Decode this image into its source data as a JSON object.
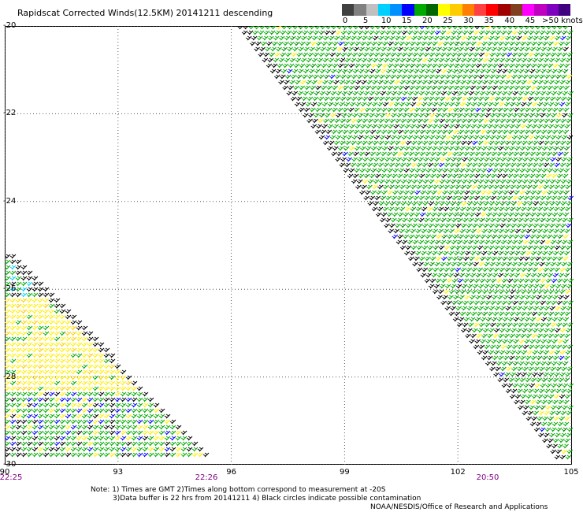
{
  "title": "Rapidscat Corrected Winds(12.5KM) 20141211 descending",
  "legend": {
    "colors": [
      "#404040",
      "#808080",
      "#c0c0c0",
      "#00d0ff",
      "#0090ff",
      "#0000ff",
      "#00aa00",
      "#006600",
      "#ffff00",
      "#ffcc00",
      "#ff8000",
      "#ff4040",
      "#ff0000",
      "#a00000",
      "#804020",
      "#ff00ff",
      "#c000c0",
      "#8000c0",
      "#400080"
    ],
    "ticks": [
      "0",
      "5",
      "10",
      "15",
      "20",
      "25",
      "30",
      "35",
      "40",
      "45"
    ],
    "last_label": ">50 knots"
  },
  "axes": {
    "lat_labels": [
      "-20",
      "-22",
      "-24",
      "-26",
      "-28",
      "-30"
    ],
    "lon_labels": [
      "90",
      "93",
      "96",
      "99",
      "102",
      "105"
    ]
  },
  "times": [
    "22:25",
    "22:26",
    "20:50"
  ],
  "notes": {
    "line1": "Note: 1) Times are GMT 2)Times along bottom correspond to measurement at -20S",
    "line2": "3)Data buffer is 22 hrs from 20141211 4) Black circles indicate possible contamination",
    "credit": "NOAA/NESDIS/Office of Research and Applications"
  },
  "chart_data": {
    "type": "wind-barb-map",
    "xlim": [
      90,
      105
    ],
    "ylim": [
      -30,
      -20
    ],
    "x_ticks": [
      90,
      93,
      96,
      99,
      102,
      105
    ],
    "y_ticks": [
      -20,
      -22,
      -24,
      -26,
      -28,
      -30
    ],
    "swaths": [
      {
        "region": "west-swath",
        "dominant_speed_knots": [
          20,
          25
        ],
        "colors": [
          "#ffff00",
          "#00aa00"
        ]
      },
      {
        "region": "east-swath",
        "dominant_speed_knots": [
          15,
          20
        ],
        "colors": [
          "#00aa00",
          "#000000"
        ]
      }
    ],
    "grid": true
  }
}
